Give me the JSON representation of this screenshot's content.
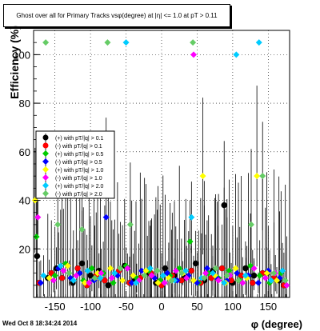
{
  "timestamp": "Wed Oct  8 18:34:24 2014",
  "chart_data": {
    "type": "scatter",
    "title": "Ghost over all for Primary Tracks vsφ(degree) at |η| <= 1.0 at pT > 0.11",
    "xlabel": "φ (degree)",
    "ylabel": "Efficiency (%)",
    "xlim": [
      -180,
      180
    ],
    "ylim": [
      0,
      110
    ],
    "xticks": [
      -150,
      -100,
      -50,
      0,
      50,
      100,
      150
    ],
    "yticks": [
      20,
      40,
      60,
      80,
      100
    ],
    "grid": true,
    "legend_position": "middle-left",
    "series": [
      {
        "name": "(+) with pT/|q| > 0.1",
        "color": "#000000",
        "marker": "circle",
        "x": [
          -175,
          -160,
          -148,
          -125,
          -112,
          -100,
          -88,
          -75,
          -52,
          -38,
          -20,
          -8,
          5,
          18,
          32,
          48,
          60,
          72,
          88,
          100,
          118,
          130,
          148,
          165
        ],
        "y": [
          17,
          8,
          12,
          6,
          14,
          9,
          11,
          5,
          13,
          7,
          10,
          6,
          12,
          9,
          8,
          14,
          7,
          11,
          38,
          6,
          12,
          9,
          10,
          7
        ]
      },
      {
        "name": "(-) with pT/|q| > 0.1",
        "color": "#ff0000",
        "marker": "circle",
        "x": [
          -172,
          -155,
          -140,
          -118,
          -105,
          -92,
          -80,
          -60,
          -45,
          -30,
          -15,
          0,
          15,
          28,
          42,
          55,
          70,
          85,
          98,
          112,
          128,
          142,
          158,
          172
        ],
        "y": [
          6,
          10,
          8,
          12,
          5,
          9,
          7,
          11,
          6,
          8,
          10,
          5,
          9,
          7,
          11,
          6,
          8,
          12,
          7,
          9,
          6,
          10,
          8,
          5
        ]
      },
      {
        "name": "(+) with pT/|q| > 0.5",
        "color": "#00cc00",
        "marker": "diamond",
        "x": [
          -176,
          -150,
          -135,
          -110,
          -98,
          -82,
          -68,
          -50,
          -35,
          -18,
          -2,
          12,
          25,
          40,
          52,
          66,
          80,
          95,
          110,
          125,
          138,
          152,
          168
        ],
        "y": [
          25,
          9,
          14,
          7,
          12,
          10,
          6,
          13,
          8,
          11,
          7,
          9,
          12,
          23,
          6,
          10,
          8,
          11,
          7,
          13,
          9,
          6,
          10
        ]
      },
      {
        "name": "(-) with pT/|q| > 0.5",
        "color": "#0000ff",
        "marker": "diamond",
        "x": [
          -170,
          -145,
          -128,
          -115,
          -95,
          -78,
          -62,
          -42,
          -28,
          -10,
          8,
          22,
          38,
          50,
          64,
          78,
          92,
          106,
          122,
          136,
          150,
          166
        ],
        "y": [
          6,
          12,
          8,
          10,
          7,
          33,
          9,
          6,
          11,
          8,
          10,
          7,
          9,
          6,
          12,
          8,
          7,
          10,
          9,
          6,
          11,
          8
        ]
      },
      {
        "name": "(+) with pT/|q| > 1.0",
        "color": "#ffff00",
        "marker": "diamond",
        "x": [
          -178,
          -158,
          -132,
          -108,
          -90,
          -72,
          -55,
          -40,
          -22,
          -5,
          10,
          30,
          45,
          58,
          75,
          90,
          104,
          120,
          134,
          148,
          162
        ],
        "y": [
          40,
          8,
          13,
          6,
          10,
          12,
          7,
          9,
          11,
          6,
          8,
          10,
          7,
          50,
          9,
          6,
          12,
          8,
          50,
          10,
          7
        ]
      },
      {
        "name": "(-) with pT/|q| > 1.0",
        "color": "#ff00ff",
        "marker": "diamond",
        "x": [
          -174,
          -152,
          -138,
          -120,
          -102,
          -85,
          -70,
          -48,
          -32,
          -14,
          4,
          20,
          35,
          45,
          62,
          80,
          96,
          114,
          130,
          146,
          160,
          176
        ],
        "y": [
          33,
          7,
          11,
          9,
          6,
          10,
          8,
          12,
          7,
          9,
          6,
          11,
          8,
          100,
          10,
          7,
          9,
          6,
          12,
          8,
          10,
          5
        ]
      },
      {
        "name": "(+) with pT/|q| > 2.0",
        "color": "#00ccff",
        "marker": "diamond",
        "x": [
          -166,
          -142,
          -124,
          -104,
          -86,
          -66,
          -50,
          -36,
          -16,
          2,
          18,
          34,
          42,
          56,
          72,
          88,
          105,
          118,
          137,
          154,
          170
        ],
        "y": [
          9,
          13,
          7,
          11,
          8,
          10,
          105,
          6,
          12,
          9,
          7,
          11,
          33,
          8,
          10,
          6,
          100,
          9,
          105,
          7,
          11
        ]
      },
      {
        "name": "(-) with pT/|q| > 2.0",
        "color": "#66cc66",
        "marker": "diamond",
        "x": [
          -163,
          -146,
          -130,
          -112,
          -94,
          -76,
          -58,
          -44,
          -24,
          -6,
          14,
          28,
          44,
          60,
          76,
          92,
          108,
          126,
          142,
          158,
          174
        ],
        "y": [
          105,
          30,
          10,
          28,
          8,
          105,
          12,
          30,
          9,
          11,
          7,
          10,
          105,
          8,
          12,
          9,
          7,
          30,
          50,
          10,
          7
        ]
      }
    ]
  }
}
